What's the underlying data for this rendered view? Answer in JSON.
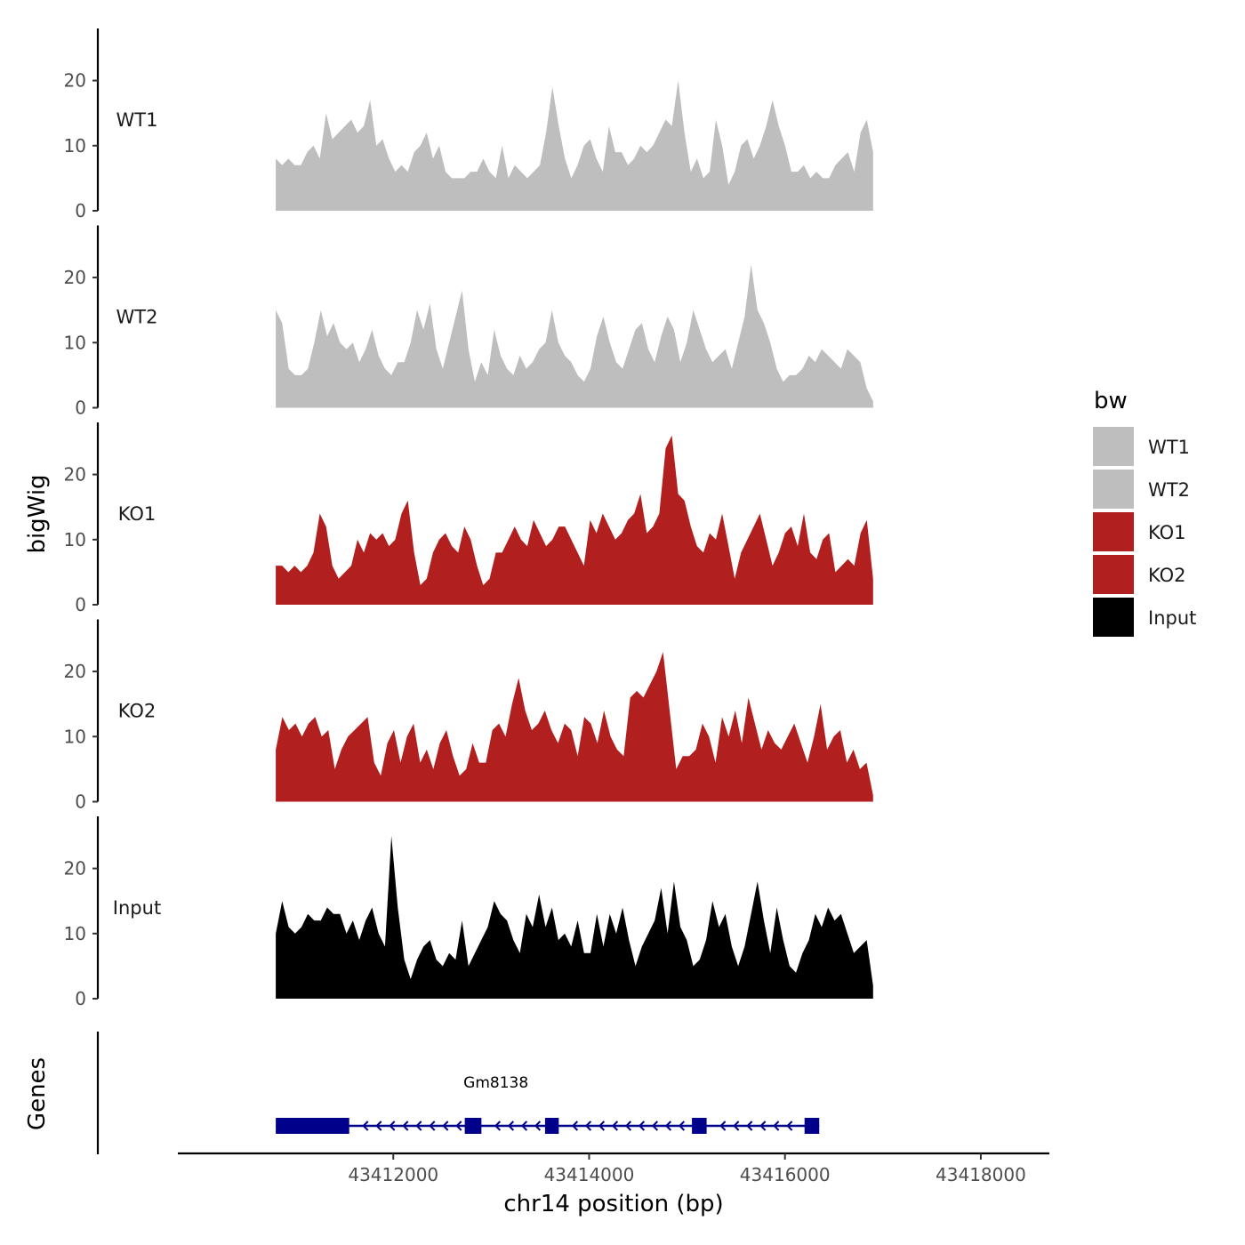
{
  "chart_data": {
    "type": "area",
    "y_axis_title": "bigWig",
    "x_axis_title": "chr14 position (bp)",
    "genes_panel_title": "Genes",
    "xlim": [
      43409800,
      43418700
    ],
    "x_ticks": [
      43412000,
      43414000,
      43416000,
      43418000
    ],
    "x_tick_labels": [
      "43412000",
      "43414000",
      "43416000",
      "43418000"
    ],
    "ylim": [
      0,
      28
    ],
    "y_ticks": [
      0,
      10,
      20
    ],
    "y_tick_labels": [
      "0",
      "10",
      "20"
    ],
    "legend": {
      "title": "bw",
      "position": "right",
      "entries": [
        {
          "label": "WT1",
          "color": "#bebebe"
        },
        {
          "label": "WT2",
          "color": "#bebebe"
        },
        {
          "label": "KO1",
          "color": "#b21f1f"
        },
        {
          "label": "KO2",
          "color": "#b21f1f"
        },
        {
          "label": "Input",
          "color": "#000000"
        }
      ]
    },
    "x_start": 43410800,
    "x_end": 43416900,
    "series": [
      {
        "name": "WT1",
        "color": "#bebebe",
        "values": [
          8,
          7,
          8,
          7,
          7,
          9,
          10,
          8,
          15,
          11,
          12,
          13,
          14,
          12,
          13,
          17,
          10,
          11,
          8,
          6,
          7,
          6,
          9,
          10,
          12,
          8,
          10,
          6,
          5,
          5,
          5,
          6,
          6,
          8,
          6,
          5,
          10,
          5,
          7,
          6,
          5,
          6,
          7,
          12,
          19,
          13,
          8,
          5,
          7,
          10,
          11,
          8,
          6,
          13,
          9,
          9,
          7,
          8,
          10,
          9,
          10,
          12,
          14,
          13,
          20,
          12,
          6,
          8,
          5,
          6,
          14,
          10,
          4,
          6,
          10,
          11,
          8,
          10,
          13,
          17,
          13,
          10,
          6,
          6,
          7,
          5,
          6,
          5,
          5,
          7,
          8,
          9,
          6,
          12,
          14,
          9
        ]
      },
      {
        "name": "WT2",
        "color": "#bebebe",
        "values": [
          15,
          13,
          6,
          5,
          5,
          6,
          10,
          15,
          11,
          13,
          10,
          9,
          10,
          7,
          9,
          12,
          8,
          6,
          5,
          7,
          7,
          10,
          15,
          12,
          16,
          9,
          6,
          10,
          14,
          18,
          9,
          4,
          7,
          5,
          12,
          8,
          6,
          5,
          8,
          6,
          7,
          9,
          10,
          15,
          10,
          8,
          7,
          5,
          4,
          6,
          11,
          14,
          10,
          7,
          6,
          9,
          12,
          13,
          9,
          7,
          11,
          14,
          12,
          7,
          10,
          15,
          12,
          9,
          7,
          8,
          9,
          6,
          10,
          14,
          22,
          15,
          13,
          10,
          6,
          4,
          5,
          5,
          6,
          8,
          7,
          9,
          8,
          7,
          6,
          9,
          8,
          7,
          3,
          1
        ]
      },
      {
        "name": "KO1",
        "color": "#b21f1f",
        "values": [
          6,
          6,
          5,
          6,
          5,
          6,
          8,
          14,
          12,
          6,
          4,
          5,
          6,
          10,
          8,
          11,
          10,
          11,
          9,
          10,
          14,
          16,
          8,
          3,
          4,
          8,
          10,
          11,
          9,
          8,
          12,
          10,
          6,
          3,
          4,
          8,
          8,
          10,
          12,
          10,
          9,
          13,
          11,
          9,
          10,
          12,
          12,
          10,
          8,
          6,
          13,
          11,
          14,
          12,
          10,
          11,
          13,
          14,
          17,
          11,
          12,
          14,
          24,
          26,
          17,
          16,
          12,
          9,
          8,
          11,
          10,
          14,
          9,
          4,
          8,
          10,
          12,
          14,
          10,
          6,
          8,
          11,
          12,
          9,
          14,
          8,
          7,
          10,
          11,
          5,
          6,
          7,
          6,
          11,
          13,
          4
        ]
      },
      {
        "name": "KO2",
        "color": "#b21f1f",
        "values": [
          8,
          13,
          11,
          12,
          10,
          12,
          13,
          10,
          11,
          5,
          8,
          10,
          11,
          12,
          13,
          6,
          4,
          9,
          11,
          6,
          10,
          12,
          6,
          8,
          5,
          9,
          11,
          7,
          4,
          5,
          9,
          6,
          6,
          11,
          12,
          10,
          15,
          19,
          14,
          11,
          12,
          14,
          11,
          9,
          12,
          11,
          7,
          13,
          12,
          9,
          14,
          10,
          8,
          7,
          16,
          17,
          16,
          18,
          20,
          23,
          14,
          5,
          7,
          7,
          8,
          12,
          10,
          6,
          13,
          10,
          14,
          9,
          16,
          12,
          8,
          11,
          9,
          8,
          10,
          12,
          9,
          6,
          10,
          15,
          8,
          10,
          11,
          6,
          8,
          5,
          6,
          1
        ]
      },
      {
        "name": "Input",
        "color": "#000000",
        "values": [
          10,
          15,
          11,
          10,
          11,
          13,
          12,
          12,
          14,
          13,
          13,
          10,
          12,
          9,
          12,
          14,
          10,
          8,
          25,
          14,
          6,
          3,
          6,
          8,
          9,
          6,
          5,
          7,
          6,
          12,
          5,
          7,
          9,
          11,
          15,
          13,
          12,
          9,
          7,
          13,
          11,
          16,
          11,
          14,
          9,
          10,
          8,
          12,
          7,
          7,
          13,
          8,
          13,
          10,
          14,
          9,
          5,
          8,
          10,
          12,
          17,
          10,
          18,
          11,
          9,
          5,
          6,
          9,
          15,
          11,
          13,
          8,
          5,
          8,
          13,
          18,
          12,
          7,
          14,
          9,
          5,
          4,
          7,
          9,
          13,
          11,
          14,
          12,
          13,
          10,
          7,
          8,
          9,
          2
        ]
      }
    ],
    "gene": {
      "name": "Gm8138",
      "strand": "-",
      "exons": [
        [
          43410800,
          43411550
        ],
        [
          43412730,
          43412900
        ],
        [
          43413550,
          43413690
        ],
        [
          43415050,
          43415200
        ],
        [
          43416200,
          43416350
        ]
      ]
    }
  }
}
